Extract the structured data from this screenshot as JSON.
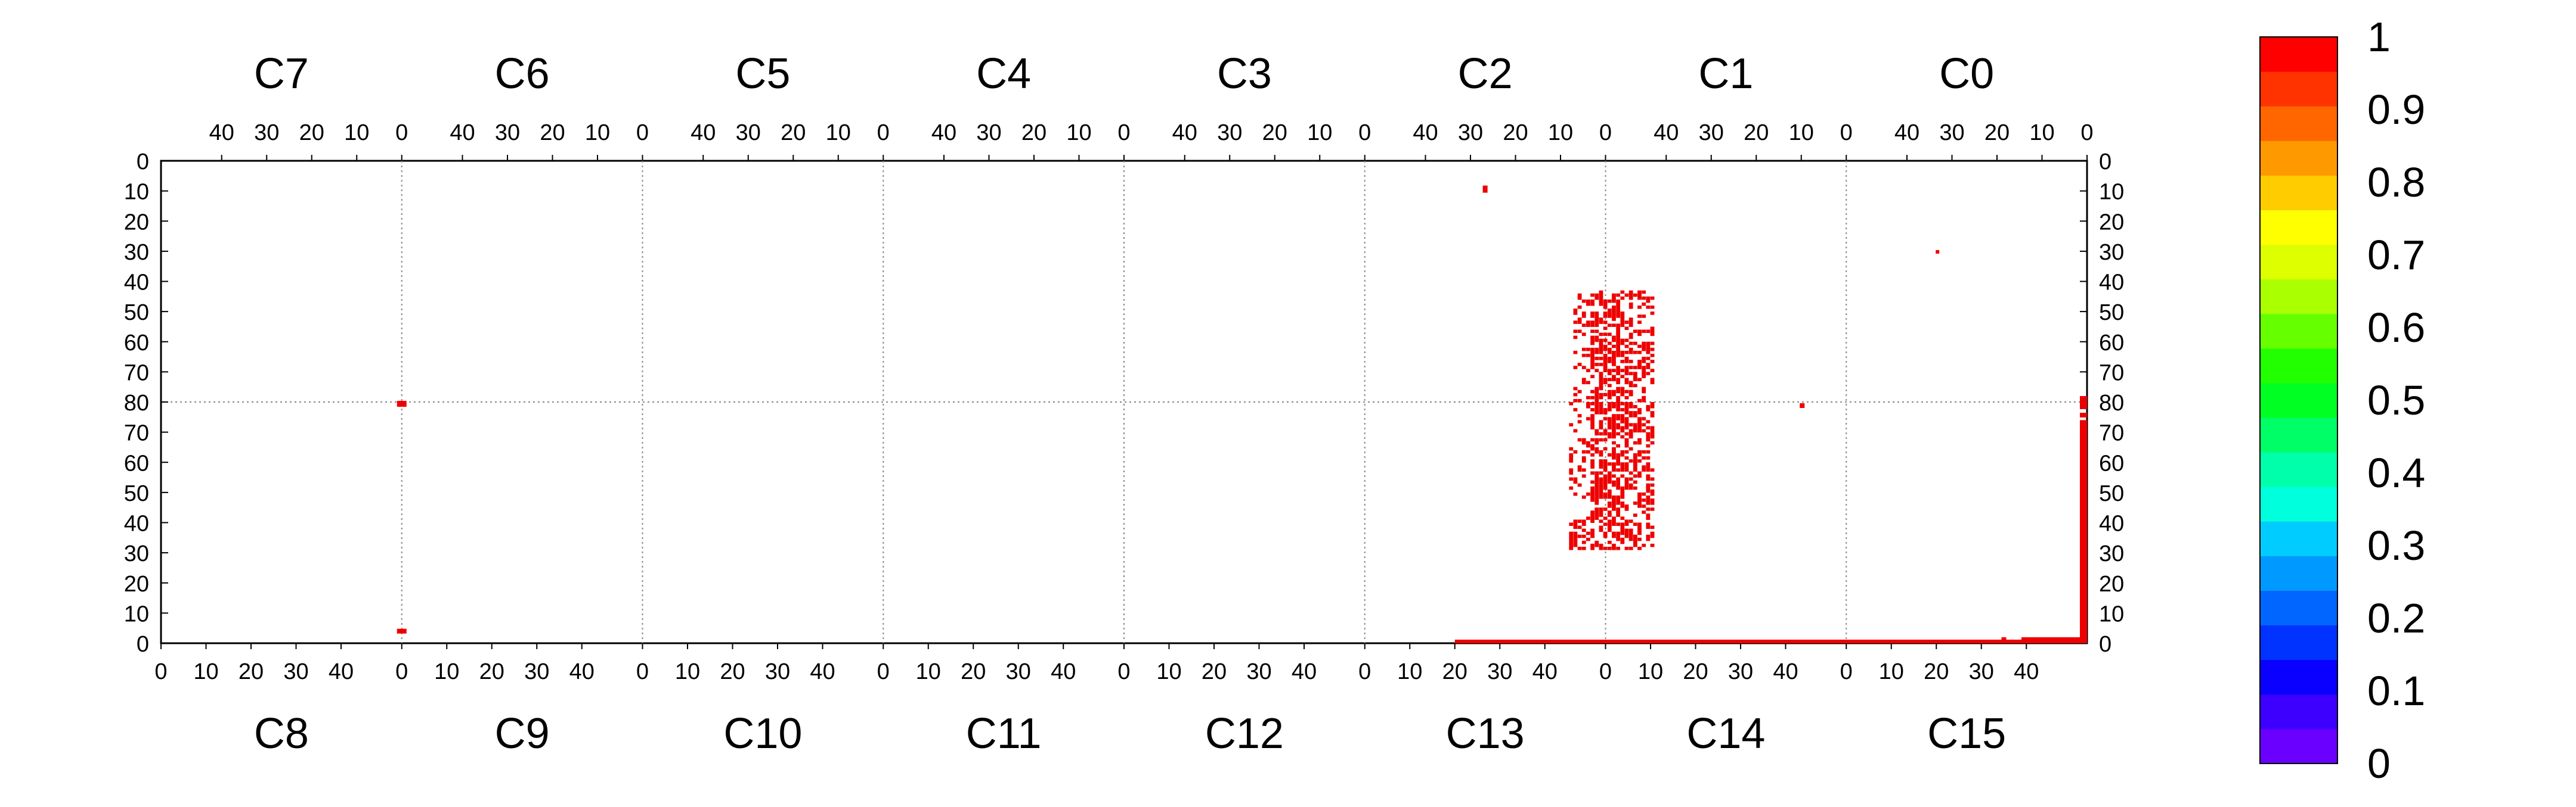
{
  "chart_data": {
    "type": "heatmap",
    "title": "",
    "top_cameras": [
      "C7",
      "C6",
      "C5",
      "C4",
      "C3",
      "C2",
      "C1",
      "C0"
    ],
    "bottom_cameras": [
      "C8",
      "C9",
      "C10",
      "C11",
      "C12",
      "C13",
      "C14",
      "C15"
    ],
    "top_x_ticks": [
      "40",
      "30",
      "20",
      "10",
      "0"
    ],
    "bottom_x_ticks": [
      "0",
      "10",
      "20",
      "30",
      "40"
    ],
    "y_ticks": [
      "0",
      "10",
      "20",
      "30",
      "40",
      "50",
      "60",
      "70",
      "80",
      "70",
      "60",
      "50",
      "40",
      "30",
      "20",
      "10",
      "0"
    ],
    "colorbar": {
      "ticks": [
        "0",
        "0.1",
        "0.2",
        "0.3",
        "0.4",
        "0.5",
        "0.6",
        "0.7",
        "0.8",
        "0.9",
        "1"
      ],
      "colors": [
        "#6a00ff",
        "#3d00ff",
        "#0a00ff",
        "#0033ff",
        "#0066ff",
        "#0099ff",
        "#00ccff",
        "#00ffdd",
        "#00ffaa",
        "#00ff66",
        "#00ff22",
        "#22ff00",
        "#66ff00",
        "#aaff00",
        "#ddff00",
        "#ffff00",
        "#ffcc00",
        "#ff9900",
        "#ff6600",
        "#ff3300",
        "#ff0000"
      ],
      "range": [
        0,
        1
      ]
    },
    "value_color": "#ee0000",
    "grid": true,
    "legend": "right",
    "hits": {
      "value": 1,
      "points": [
        [
          6,
          80,
          79
        ],
        [
          6,
          5,
          4
        ],
        [
          13,
          9,
          10
        ],
        [
          8,
          30,
          29
        ],
        [
          12,
          42,
          78
        ]
      ],
      "runs": [
        {
          "row": 0,
          "from": 5.2,
          "to": 8.0
        },
        {
          "row": 1,
          "from": 7.88,
          "to": 7.92
        },
        {
          "row": 1,
          "from": 7.78,
          "to": 7.81
        },
        {
          "row": 0.5,
          "from": 7.95,
          "to": 8.0
        }
      ],
      "column_strip": {
        "x": 7.985,
        "from_row": 1,
        "to_row": 74
      },
      "top_right_block": [
        7.985,
        78,
        82
      ],
      "cluster": {
        "center_top": 11.95,
        "center_bottom": 12.05,
        "rows_top": [
          43,
          80
        ],
        "rows_bottom": [
          31,
          79
        ]
      }
    }
  }
}
